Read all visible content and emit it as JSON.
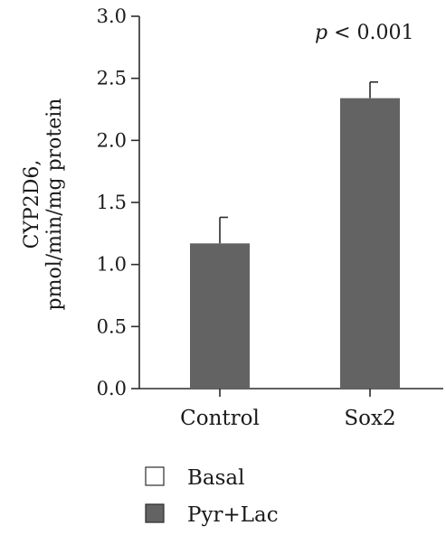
{
  "chart_data": {
    "type": "bar",
    "ylabel_line1": "CYP2D6,",
    "ylabel_line2": "pmol/min/mg protein",
    "xlabel": "",
    "categories": [
      "Control",
      "Sox2"
    ],
    "series": [
      {
        "name": "Basal",
        "values": [
          null,
          null
        ],
        "errors": [
          null,
          null
        ]
      },
      {
        "name": "Pyr+Lac",
        "values": [
          1.17,
          2.34
        ],
        "errors": [
          0.21,
          0.13
        ]
      }
    ],
    "ylim": [
      0,
      3.0
    ],
    "yticks": [
      0.0,
      0.5,
      1.0,
      1.5,
      2.0,
      2.5,
      3.0
    ],
    "ytick_labels": [
      "0.0",
      "0.5",
      "1.0",
      "1.5",
      "2.0",
      "2.5",
      "3.0"
    ],
    "annotation": {
      "p_symbol": "p",
      "text": " < 0.001"
    },
    "legend_position": "bottom-left",
    "grid": false
  },
  "colors": {
    "basal": "#ffffff",
    "pyr_lac": "#636363",
    "axis": "#2b2b2b"
  }
}
